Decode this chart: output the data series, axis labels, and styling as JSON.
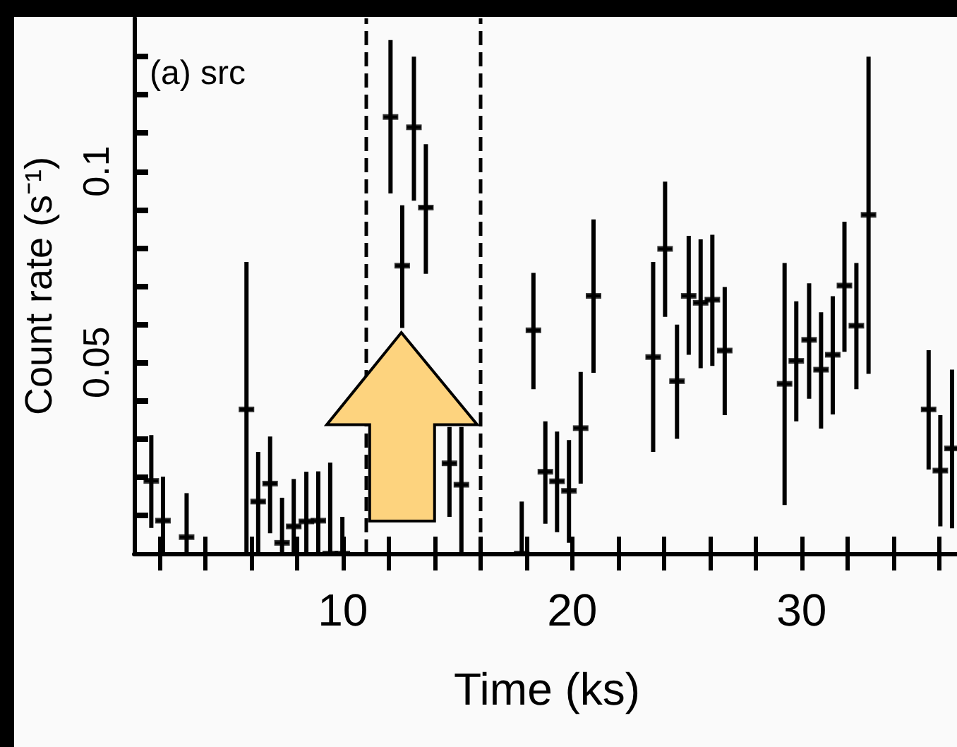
{
  "chart_data": {
    "type": "scatter",
    "xlabel": "Time (ks)",
    "ylabel": "Count rate (s⁻¹)",
    "annotations": [
      "(a) src"
    ],
    "xlim": [
      0.9,
      36.9
    ],
    "xticks": [
      {
        "value": 2,
        "label": null
      },
      {
        "value": 4,
        "label": null
      },
      {
        "value": 6,
        "label": null
      },
      {
        "value": 8,
        "label": null
      },
      10,
      {
        "value": 12,
        "label": null
      },
      {
        "value": 14,
        "label": null
      },
      {
        "value": 16,
        "label": null
      },
      {
        "value": 18,
        "label": null
      },
      20,
      {
        "value": 22,
        "label": null
      },
      {
        "value": 24,
        "label": null
      },
      {
        "value": 26,
        "label": null
      },
      {
        "value": 28,
        "label": null
      },
      30,
      {
        "value": 32,
        "label": null
      },
      {
        "value": 34,
        "label": null
      },
      {
        "value": 36,
        "label": null
      }
    ],
    "ylim": [
      0,
      0.14
    ],
    "yticks": [
      {
        "value": 0.01,
        "label": null
      },
      {
        "value": 0.02,
        "label": null
      },
      {
        "value": 0.03,
        "label": null
      },
      {
        "value": 0.04,
        "label": null
      },
      0.05,
      {
        "value": 0.06,
        "label": null
      },
      {
        "value": 0.07,
        "label": null
      },
      {
        "value": 0.08,
        "label": null
      },
      {
        "value": 0.09,
        "label": null
      },
      0.1,
      {
        "value": 0.11,
        "label": null
      },
      {
        "value": 0.12,
        "label": null
      },
      {
        "value": 0.13,
        "label": null
      }
    ],
    "grid": false,
    "ref_lines": [
      {
        "axis": "x",
        "value": 11,
        "line_style": "dashed",
        "color": "#000000"
      },
      {
        "axis": "x",
        "value": 16,
        "line_style": "dashed",
        "color": "#000000"
      }
    ],
    "series": [
      {
        "color": "#000000",
        "x": [
          1.65,
          2.16,
          3.19,
          5.8,
          6.31,
          6.83,
          7.35,
          7.86,
          8.41,
          8.93,
          9.45,
          9.98,
          12.08,
          12.59,
          13.1,
          13.62,
          14.65,
          15.17,
          17.8,
          18.31,
          18.83,
          19.34,
          19.86,
          20.37,
          20.93,
          23.53,
          24.05,
          24.57,
          25.08,
          25.6,
          26.11,
          26.65,
          29.26,
          29.77,
          30.33,
          30.85,
          31.36,
          31.87,
          32.39,
          32.92,
          35.54,
          36.05,
          36.56
        ],
        "values": [
          0.019,
          0.0086,
          0.0043,
          0.0377,
          0.0136,
          0.0183,
          0.0028,
          0.0071,
          0.0084,
          0.0086,
          0,
          0,
          0.1142,
          0.0753,
          0.1115,
          0.0905,
          0.0236,
          0.018,
          0,
          0.0584,
          0.0214,
          0.0189,
          0.0164,
          0.0328,
          0.0674,
          0.0514,
          0.0797,
          0.0451,
          0.0674,
          0.0656,
          0.0664,
          0.0531,
          0.0444,
          0.0504,
          0.0559,
          0.0481,
          0.052,
          0.0701,
          0.0596,
          0.0886,
          0.0377,
          0.0217,
          0.0275
        ],
        "errors": [
          [
            0.0067,
            0.031
          ],
          [
            0,
            0.0201
          ],
          [
            0,
            0.0158
          ],
          [
            0,
            0.0763
          ],
          [
            0,
            0.0266
          ],
          [
            0.0053,
            0.0306
          ],
          [
            0,
            0.0146
          ],
          [
            0,
            0.0195
          ],
          [
            0,
            0.0214
          ],
          [
            0,
            0.0215
          ],
          [
            0,
            0.0238
          ],
          [
            0,
            0.0096
          ],
          [
            0.0942,
            0.1343
          ],
          [
            0.059,
            0.0911
          ],
          [
            0.0923,
            0.13
          ],
          [
            0.0732,
            0.1071
          ],
          [
            0.0096,
            0.0331
          ],
          [
            0,
            0.0331
          ],
          [
            0,
            0.0136
          ],
          [
            0.043,
            0.0734
          ],
          [
            0.0078,
            0.0346
          ],
          [
            0.0056,
            0.0319
          ],
          [
            0.0028,
            0.0297
          ],
          [
            0.0183,
            0.0475
          ],
          [
            0.0473,
            0.0874
          ],
          [
            0.0266,
            0.0763
          ],
          [
            0.0619,
            0.0973
          ],
          [
            0.03,
            0.0599
          ],
          [
            0.052,
            0.0831
          ],
          [
            0.0485,
            0.0822
          ],
          [
            0.0491,
            0.0834
          ],
          [
            0.0362,
            0.0697
          ],
          [
            0.0127,
            0.076
          ],
          [
            0.0346,
            0.066
          ],
          [
            0.0405,
            0.0707
          ],
          [
            0.0327,
            0.0631
          ],
          [
            0.0364,
            0.0673
          ],
          [
            0.0528,
            0.0868
          ],
          [
            0.043,
            0.076
          ],
          [
            0.047,
            0.13
          ],
          [
            0.022,
            0.0532
          ],
          [
            0.0071,
            0.0362
          ],
          [
            0.0066,
            0.0481
          ]
        ],
        "xerrors": [
          0.3,
          0.3,
          0.3,
          0.3,
          0.3,
          0.3,
          0.3,
          0.3,
          0.3,
          0.3,
          null,
          null,
          0.3,
          0.3,
          0.3,
          0.3,
          0.3,
          0.3,
          null,
          0.3,
          0.3,
          0.3,
          0.3,
          0.3,
          0.3,
          0.3,
          0.3,
          0.3,
          0.3,
          0.3,
          0.3,
          0.3,
          0.3,
          0.3,
          0.3,
          0.3,
          0.3,
          0.3,
          0.3,
          0.3,
          0.3,
          0.3,
          0.3
        ]
      }
    ]
  }
}
